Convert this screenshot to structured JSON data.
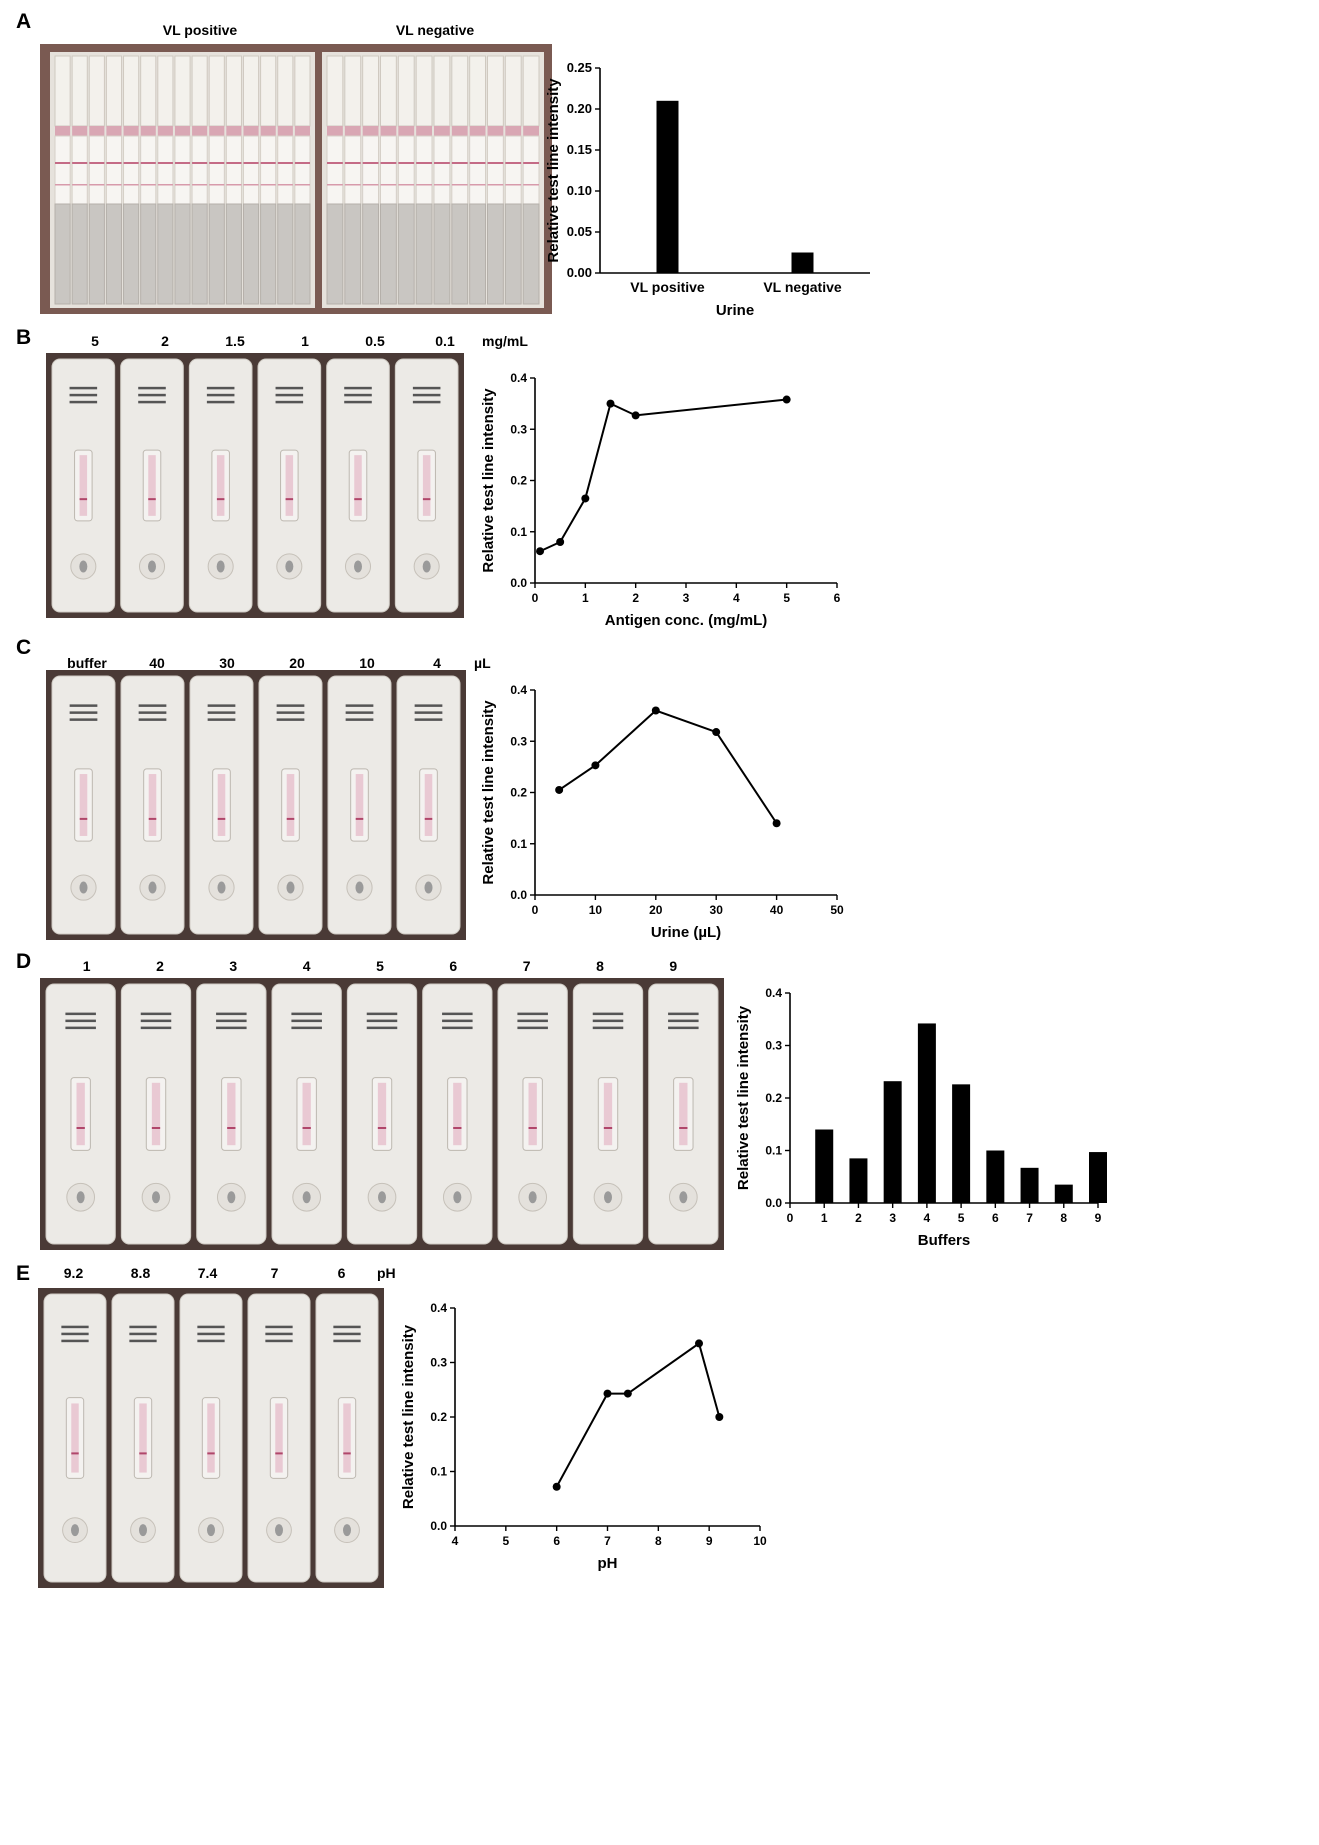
{
  "panels": [
    {
      "id": "A",
      "letter": "A",
      "photo": {
        "group_labels": [
          "VL positive",
          "VL negative"
        ]
      },
      "chart_data": {
        "type": "bar",
        "categories": [
          "VL positive",
          "VL negative"
        ],
        "values": [
          0.21,
          0.025
        ],
        "xlabel": "Urine",
        "ylabel": "Relative test line intensity",
        "ylim": [
          0,
          0.25
        ],
        "yticks": [
          "0.00",
          "0.05",
          "0.10",
          "0.15",
          "0.20",
          "0.25"
        ],
        "grid": false
      }
    },
    {
      "id": "B",
      "letter": "B",
      "photo": {
        "cassette_labels": [
          "5",
          "2",
          "1.5",
          "1",
          "0.5",
          "0.1"
        ],
        "unit": "mg/mL"
      },
      "chart_data": {
        "type": "line",
        "x": [
          0.1,
          0.5,
          1,
          1.5,
          2,
          5
        ],
        "y": [
          0.062,
          0.08,
          0.165,
          0.35,
          0.327,
          0.358
        ],
        "xlabel": "Antigen conc. (mg/mL)",
        "ylabel": "Relative test line intensity",
        "xlim": [
          0,
          6
        ],
        "ylim": [
          0,
          0.4
        ],
        "xticks": [
          "0",
          "1",
          "2",
          "3",
          "4",
          "5",
          "6"
        ],
        "yticks": [
          "0.0",
          "0.1",
          "0.2",
          "0.3",
          "0.4"
        ],
        "grid": false
      }
    },
    {
      "id": "C",
      "letter": "C",
      "photo": {
        "cassette_labels": [
          "buffer",
          "40",
          "30",
          "20",
          "10",
          "4"
        ],
        "unit": "µL"
      },
      "chart_data": {
        "type": "line",
        "x": [
          4,
          10,
          20,
          30,
          40
        ],
        "y": [
          0.205,
          0.253,
          0.36,
          0.318,
          0.14
        ],
        "xlabel": "Urine (µL)",
        "ylabel": "Relative test line intensity",
        "xlim": [
          0,
          50
        ],
        "ylim": [
          0,
          0.4
        ],
        "xticks": [
          "0",
          "10",
          "20",
          "30",
          "40",
          "50"
        ],
        "yticks": [
          "0.0",
          "0.1",
          "0.2",
          "0.3",
          "0.4"
        ],
        "grid": false
      }
    },
    {
      "id": "D",
      "letter": "D",
      "photo": {
        "cassette_labels": [
          "1",
          "2",
          "3",
          "4",
          "5",
          "6",
          "7",
          "8",
          "9"
        ],
        "unit": ""
      },
      "chart_data": {
        "type": "bar",
        "categories": [
          "1",
          "2",
          "3",
          "4",
          "5",
          "6",
          "7",
          "8",
          "9"
        ],
        "values": [
          0.14,
          0.085,
          0.232,
          0.342,
          0.226,
          0.1,
          0.067,
          0.035,
          0.097
        ],
        "xlabel": "Buffers",
        "ylabel": "Relative test line intensity",
        "xlim": [
          0,
          9
        ],
        "ylim": [
          0,
          0.4
        ],
        "xticks": [
          "0",
          "1",
          "2",
          "3",
          "4",
          "5",
          "6",
          "7",
          "8",
          "9"
        ],
        "yticks": [
          "0.0",
          "0.1",
          "0.2",
          "0.3",
          "0.4"
        ],
        "grid": false
      }
    },
    {
      "id": "E",
      "letter": "E",
      "photo": {
        "cassette_labels": [
          "9.2",
          "8.8",
          "7.4",
          "7",
          "6"
        ],
        "unit": "pH"
      },
      "chart_data": {
        "type": "line",
        "x": [
          6,
          7,
          7.4,
          8.8,
          9.2
        ],
        "y": [
          0.072,
          0.243,
          0.243,
          0.335,
          0.2
        ],
        "xlabel": "pH",
        "ylabel": "Relative test line intensity",
        "xlim": [
          4,
          10
        ],
        "ylim": [
          0,
          0.4
        ],
        "xticks": [
          "4",
          "5",
          "6",
          "7",
          "8",
          "9",
          "10"
        ],
        "yticks": [
          "0.0",
          "0.1",
          "0.2",
          "0.3",
          "0.4"
        ],
        "grid": false
      }
    }
  ]
}
